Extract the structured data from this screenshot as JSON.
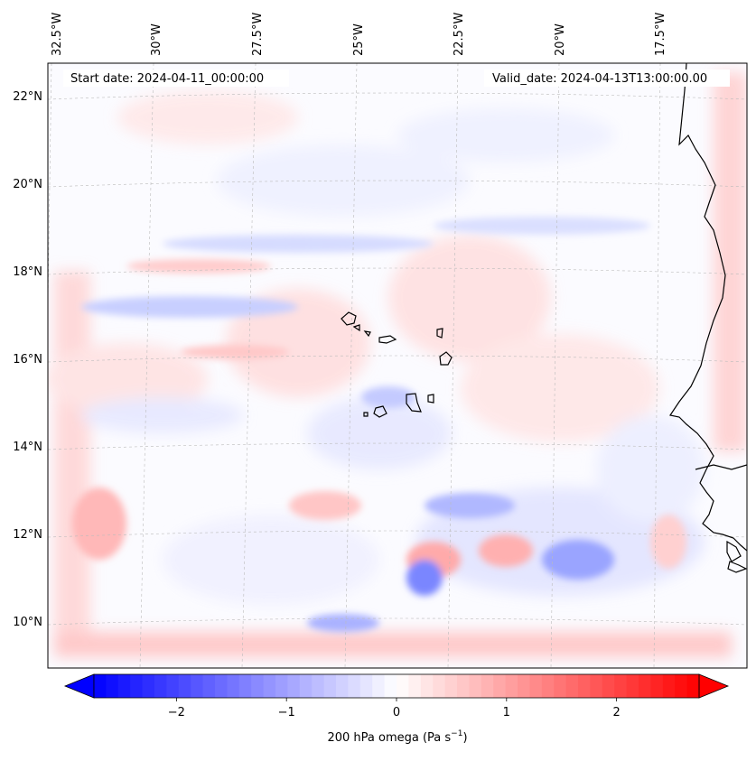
{
  "map": {
    "start_label": "Start date: 2024-04-11_00:00:00",
    "valid_label": "Valid_date: 2024-04-13T13:00:00.00",
    "lon_labels": [
      "32.5°W",
      "30°W",
      "27.5°W",
      "25°W",
      "22.5°W",
      "20°W",
      "17.5°W"
    ],
    "lat_labels": [
      "22°N",
      "20°N",
      "18°N",
      "16°N",
      "14°N",
      "12°N",
      "10°N"
    ]
  },
  "colorbar": {
    "title": "200 hPa omega (Pa s",
    "title_exp": "−1",
    "title_end": ")",
    "ticks": [
      "−2",
      "−1",
      "0",
      "1",
      "2"
    ],
    "tick_values": [
      -2,
      -1,
      0,
      1,
      2
    ],
    "range": [
      -2.75,
      2.75
    ],
    "extend": "both"
  },
  "colors": {
    "negative": "#0000ff",
    "neutral": "#ffffff",
    "positive": "#ff0000",
    "coast": "#000000",
    "grid": "#bbbbbb"
  }
}
